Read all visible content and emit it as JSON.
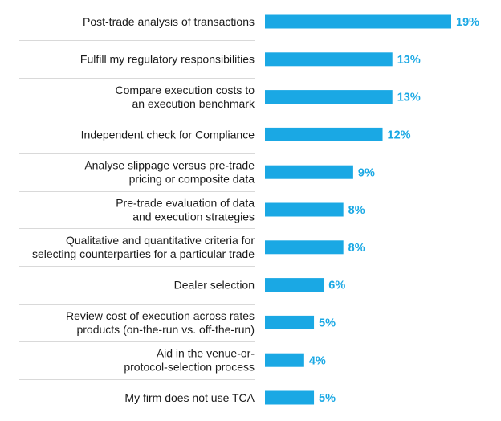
{
  "chart_data": {
    "type": "bar",
    "orientation": "horizontal",
    "title": "",
    "xlabel": "",
    "ylabel": "",
    "categories": [
      "Post-trade analysis of transactions",
      "Fulfill my regulatory responsibilities",
      "Compare execution costs to\nan execution benchmark",
      "Independent check for Compliance",
      "Analyse slippage versus pre-trade\npricing or composite data",
      "Pre-trade evaluation of data\nand execution strategies",
      "Qualitative and quantitative criteria for\nselecting counterparties for a particular trade",
      "Dealer selection",
      "Review cost of execution across rates\nproducts (on-the-run vs. off-the-run)",
      "Aid in the venue-or-\nprotocol-selection process",
      "My firm does not use TCA"
    ],
    "values": [
      19,
      13,
      13,
      12,
      9,
      8,
      8,
      6,
      5,
      4,
      5
    ],
    "value_labels": [
      "19%",
      "13%",
      "13%",
      "12%",
      "9%",
      "8%",
      "8%",
      "6%",
      "5%",
      "4%",
      "5%"
    ],
    "xlim": [
      0,
      20
    ],
    "grid": false,
    "legend": "none",
    "colors": {
      "bar": "#1aa8e4",
      "value_text": "#1aa8e4",
      "label_text": "#1a1a1a",
      "separator": "#d9d9d9"
    }
  }
}
